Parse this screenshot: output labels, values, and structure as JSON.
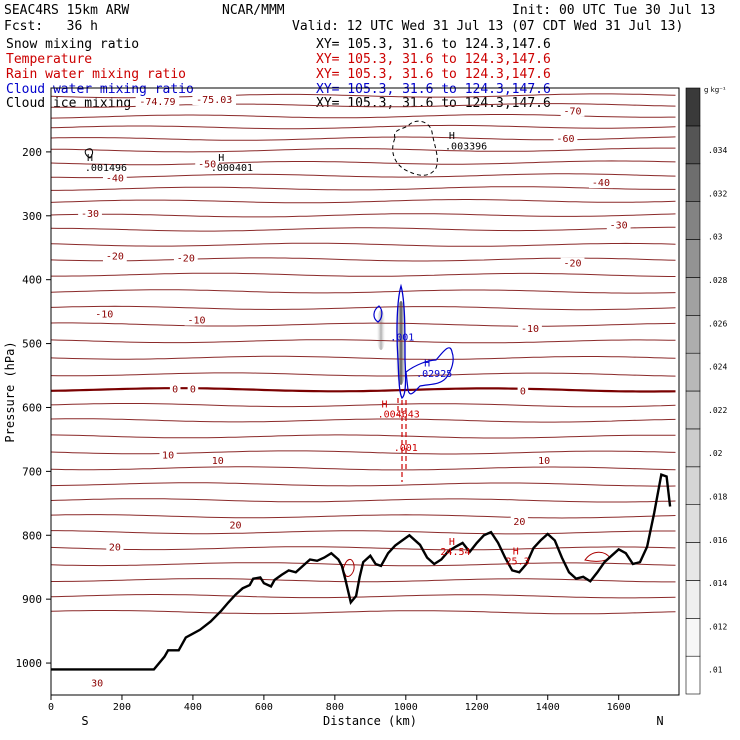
{
  "header": {
    "line1_left": "SEAC4RS 15km ARW",
    "line1_mid": "NCAR/MMM",
    "line1_right": "Init: 00 UTC Tue 30 Jul 13",
    "fcst": "Fcst:   36 h",
    "valid": "Valid: 12 UTC Wed 31 Jul 13 (07 CDT Wed 31 Jul 13)",
    "fields": [
      {
        "label": "Snow mixing ratio",
        "xy": "XY= 105.3, 31.6 to 124.3,147.6",
        "color": "#000000"
      },
      {
        "label": "Temperature",
        "xy": "XY= 105.3, 31.6 to 124.3,147.6",
        "color": "#cc0000"
      },
      {
        "label": "Rain water mixing ratio",
        "xy": "XY= 105.3, 31.6 to 124.3,147.6",
        "color": "#cc0000"
      },
      {
        "label": "Cloud water mixing ratio",
        "xy": "XY= 105.3, 31.6 to 124.3,147.6",
        "color": "#0000cc"
      },
      {
        "label": "Cloud ice mixing ratio",
        "xy": "XY= 105.3, 31.6 to 124.3,147.6",
        "color": "#000000"
      }
    ]
  },
  "chart_data": {
    "type": "cross-section",
    "xlabel": "Distance (km)",
    "ylabel": "Pressure (hPa)",
    "xlim": [
      0,
      1770
    ],
    "ylim": [
      1050,
      100
    ],
    "x_ticks": [
      0,
      200,
      400,
      600,
      800,
      1000,
      1200,
      1400,
      1600
    ],
    "y_ticks": [
      200,
      300,
      400,
      500,
      600,
      700,
      800,
      900,
      1000
    ],
    "endpoints": {
      "left": "S",
      "right": "N"
    },
    "colorbar": {
      "unit": "g kg⁻¹",
      "ticks": [
        ".01",
        ".012",
        ".014",
        ".016",
        ".018",
        ".02",
        ".022",
        ".024",
        ".026",
        ".028",
        ".03",
        ".032",
        ".034"
      ],
      "colors": [
        "#ffffff",
        "#f7f7f7",
        "#efefef",
        "#e7e7e7",
        "#dedede",
        "#d5d5d5",
        "#cccccc",
        "#c2c2c2",
        "#b8b8b8",
        "#adadad",
        "#a1a1a1",
        "#939393",
        "#838383",
        "#6e6e6e",
        "#555555",
        "#3a3a3a"
      ]
    },
    "temperature_contour_labels": [
      {
        "text": "-75.03",
        "x": 460,
        "p": 122
      },
      {
        "text": "-74.79",
        "x": 300,
        "p": 125
      },
      {
        "text": "-70",
        "x": 1470,
        "p": 140
      },
      {
        "text": "-60",
        "x": 1450,
        "p": 183
      },
      {
        "text": "-50",
        "x": 440,
        "p": 223
      },
      {
        "text": "-40",
        "x": 180,
        "p": 245
      },
      {
        "text": "-40",
        "x": 1550,
        "p": 252
      },
      {
        "text": "-30",
        "x": 110,
        "p": 300
      },
      {
        "text": "-30",
        "x": 1600,
        "p": 318
      },
      {
        "text": "-20",
        "x": 180,
        "p": 367
      },
      {
        "text": "-20",
        "x": 380,
        "p": 370
      },
      {
        "text": "-20",
        "x": 1470,
        "p": 378
      },
      {
        "text": "-10",
        "x": 150,
        "p": 458
      },
      {
        "text": "-10",
        "x": 410,
        "p": 467
      },
      {
        "text": "-10",
        "x": 1350,
        "p": 480
      },
      {
        "text": "0",
        "x": 350,
        "p": 575
      },
      {
        "text": "0",
        "x": 400,
        "p": 575
      },
      {
        "text": "0",
        "x": 1330,
        "p": 578
      },
      {
        "text": "10",
        "x": 330,
        "p": 678
      },
      {
        "text": "10",
        "x": 470,
        "p": 687
      },
      {
        "text": "10",
        "x": 1390,
        "p": 687
      },
      {
        "text": "20",
        "x": 520,
        "p": 788
      },
      {
        "text": "20",
        "x": 180,
        "p": 822
      },
      {
        "text": "20",
        "x": 1320,
        "p": 782
      },
      {
        "text": "30",
        "x": 130,
        "p": 1035
      }
    ],
    "temperature_isotherm_levels_hPa_at_left": [
      113,
      128,
      145,
      162,
      180,
      198,
      218,
      238,
      258,
      278,
      300,
      322,
      345,
      368,
      392,
      418,
      444,
      470,
      496,
      522,
      548,
      572,
      596,
      620,
      645,
      670,
      695,
      720,
      745,
      770,
      795,
      820,
      845,
      870,
      895,
      920
    ],
    "extrema_labels": [
      {
        "text": "H",
        "x": 110,
        "p": 214,
        "color": "#000000"
      },
      {
        "text": ".001496",
        "x": 155,
        "p": 230,
        "color": "#000000"
      },
      {
        "text": "H",
        "x": 480,
        "p": 214,
        "color": "#000000"
      },
      {
        "text": ".000401",
        "x": 510,
        "p": 230,
        "color": "#000000"
      },
      {
        "text": "H",
        "x": 1130,
        "p": 180,
        "color": "#000000"
      },
      {
        "text": ".003396",
        "x": 1170,
        "p": 196,
        "color": "#000000"
      },
      {
        "text": ".001",
        "x": 990,
        "p": 495,
        "color": "#0000cc"
      },
      {
        "text": "H",
        "x": 1060,
        "p": 536,
        "color": "#0000cc"
      },
      {
        "text": ".02925",
        "x": 1080,
        "p": 552,
        "color": "#0000cc"
      },
      {
        "text": "H",
        "x": 940,
        "p": 600,
        "color": "#cc0000"
      },
      {
        "text": ".004643",
        "x": 980,
        "p": 616,
        "color": "#cc0000"
      },
      {
        "text": ".001",
        "x": 1000,
        "p": 668,
        "color": "#cc0000"
      },
      {
        "text": "H",
        "x": 1130,
        "p": 815,
        "color": "#cc0000"
      },
      {
        "text": "24.54",
        "x": 1140,
        "p": 831,
        "color": "#cc0000"
      },
      {
        "text": "H",
        "x": 1310,
        "p": 830,
        "color": "#cc0000"
      },
      {
        "text": "25.3",
        "x": 1315,
        "p": 846,
        "color": "#cc0000"
      }
    ],
    "terrain_profile": [
      [
        0,
        1010
      ],
      [
        100,
        1010
      ],
      [
        200,
        1010
      ],
      [
        290,
        1010
      ],
      [
        320,
        990
      ],
      [
        330,
        980
      ],
      [
        360,
        980
      ],
      [
        380,
        960
      ],
      [
        420,
        948
      ],
      [
        450,
        935
      ],
      [
        480,
        918
      ],
      [
        500,
        905
      ],
      [
        520,
        893
      ],
      [
        540,
        883
      ],
      [
        560,
        878
      ],
      [
        570,
        868
      ],
      [
        590,
        866
      ],
      [
        600,
        875
      ],
      [
        620,
        880
      ],
      [
        630,
        870
      ],
      [
        650,
        862
      ],
      [
        670,
        855
      ],
      [
        690,
        858
      ],
      [
        710,
        848
      ],
      [
        730,
        838
      ],
      [
        750,
        840
      ],
      [
        770,
        835
      ],
      [
        790,
        828
      ],
      [
        810,
        838
      ],
      [
        820,
        848
      ],
      [
        830,
        870
      ],
      [
        845,
        905
      ],
      [
        860,
        895
      ],
      [
        870,
        865
      ],
      [
        880,
        842
      ],
      [
        900,
        832
      ],
      [
        915,
        845
      ],
      [
        930,
        848
      ],
      [
        950,
        828
      ],
      [
        970,
        816
      ],
      [
        990,
        808
      ],
      [
        1010,
        800
      ],
      [
        1040,
        815
      ],
      [
        1060,
        835
      ],
      [
        1080,
        845
      ],
      [
        1100,
        838
      ],
      [
        1120,
        825
      ],
      [
        1140,
        818
      ],
      [
        1160,
        812
      ],
      [
        1180,
        826
      ],
      [
        1200,
        812
      ],
      [
        1220,
        800
      ],
      [
        1240,
        795
      ],
      [
        1260,
        812
      ],
      [
        1280,
        835
      ],
      [
        1300,
        855
      ],
      [
        1320,
        858
      ],
      [
        1340,
        845
      ],
      [
        1360,
        820
      ],
      [
        1380,
        808
      ],
      [
        1400,
        798
      ],
      [
        1420,
        808
      ],
      [
        1440,
        835
      ],
      [
        1460,
        858
      ],
      [
        1480,
        868
      ],
      [
        1500,
        865
      ],
      [
        1520,
        872
      ],
      [
        1540,
        858
      ],
      [
        1560,
        842
      ],
      [
        1580,
        832
      ],
      [
        1600,
        822
      ],
      [
        1620,
        828
      ],
      [
        1640,
        845
      ],
      [
        1660,
        842
      ],
      [
        1680,
        818
      ],
      [
        1700,
        765
      ],
      [
        1720,
        705
      ],
      [
        1735,
        708
      ],
      [
        1745,
        755
      ]
    ]
  }
}
